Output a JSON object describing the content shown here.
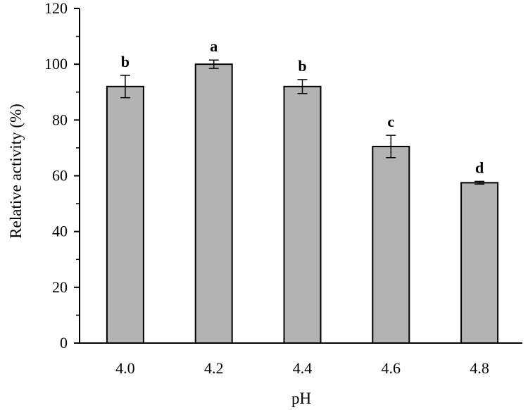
{
  "chart_data": {
    "type": "bar",
    "categories": [
      "4.0",
      "4.2",
      "4.4",
      "4.6",
      "4.8"
    ],
    "values": [
      92,
      100,
      92,
      70.5,
      57.5
    ],
    "errors": [
      4,
      1.5,
      2.5,
      4,
      0.5
    ],
    "significance_letters": [
      "b",
      "a",
      "b",
      "c",
      "d"
    ],
    "xlabel": "pH",
    "ylabel": "Relative activity (%)",
    "ylim": [
      0,
      120
    ],
    "yticks": [
      "0",
      "20",
      "40",
      "60",
      "80",
      "100",
      "120"
    ],
    "bar_color": "#b3b3b3",
    "grid": false,
    "legend": "none"
  }
}
